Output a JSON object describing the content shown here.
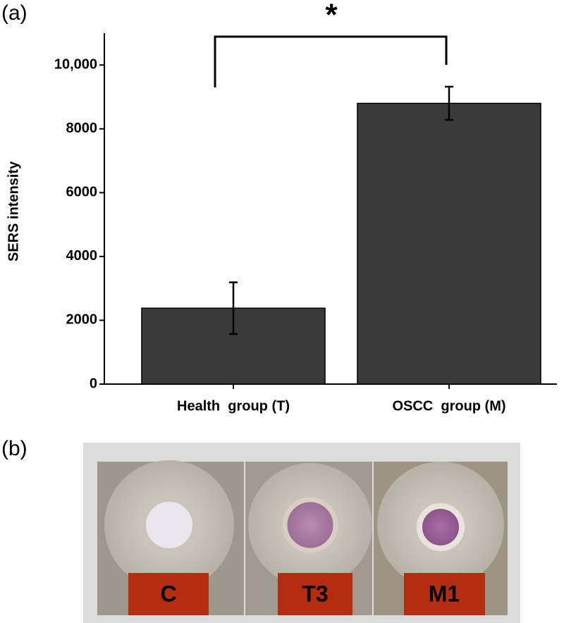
{
  "panel_labels": [
    "(a)",
    "(b)"
  ],
  "chart_data": {
    "type": "bar",
    "y_label": "SERS intensity",
    "annotation": "*",
    "categories": [
      "Health  group (T)",
      "OSCC  group (M)"
    ],
    "values": [
      2380,
      8800
    ],
    "errors": [
      810,
      520
    ],
    "color": "#3a3a3a",
    "ylim": [
      0,
      11000
    ],
    "yticks": [
      0,
      2000,
      4000,
      6000,
      8000,
      {
        "value": 10000,
        "label": "10,000"
      }
    ]
  },
  "photo": {
    "labels": [
      "C",
      "T3",
      "M1"
    ]
  }
}
